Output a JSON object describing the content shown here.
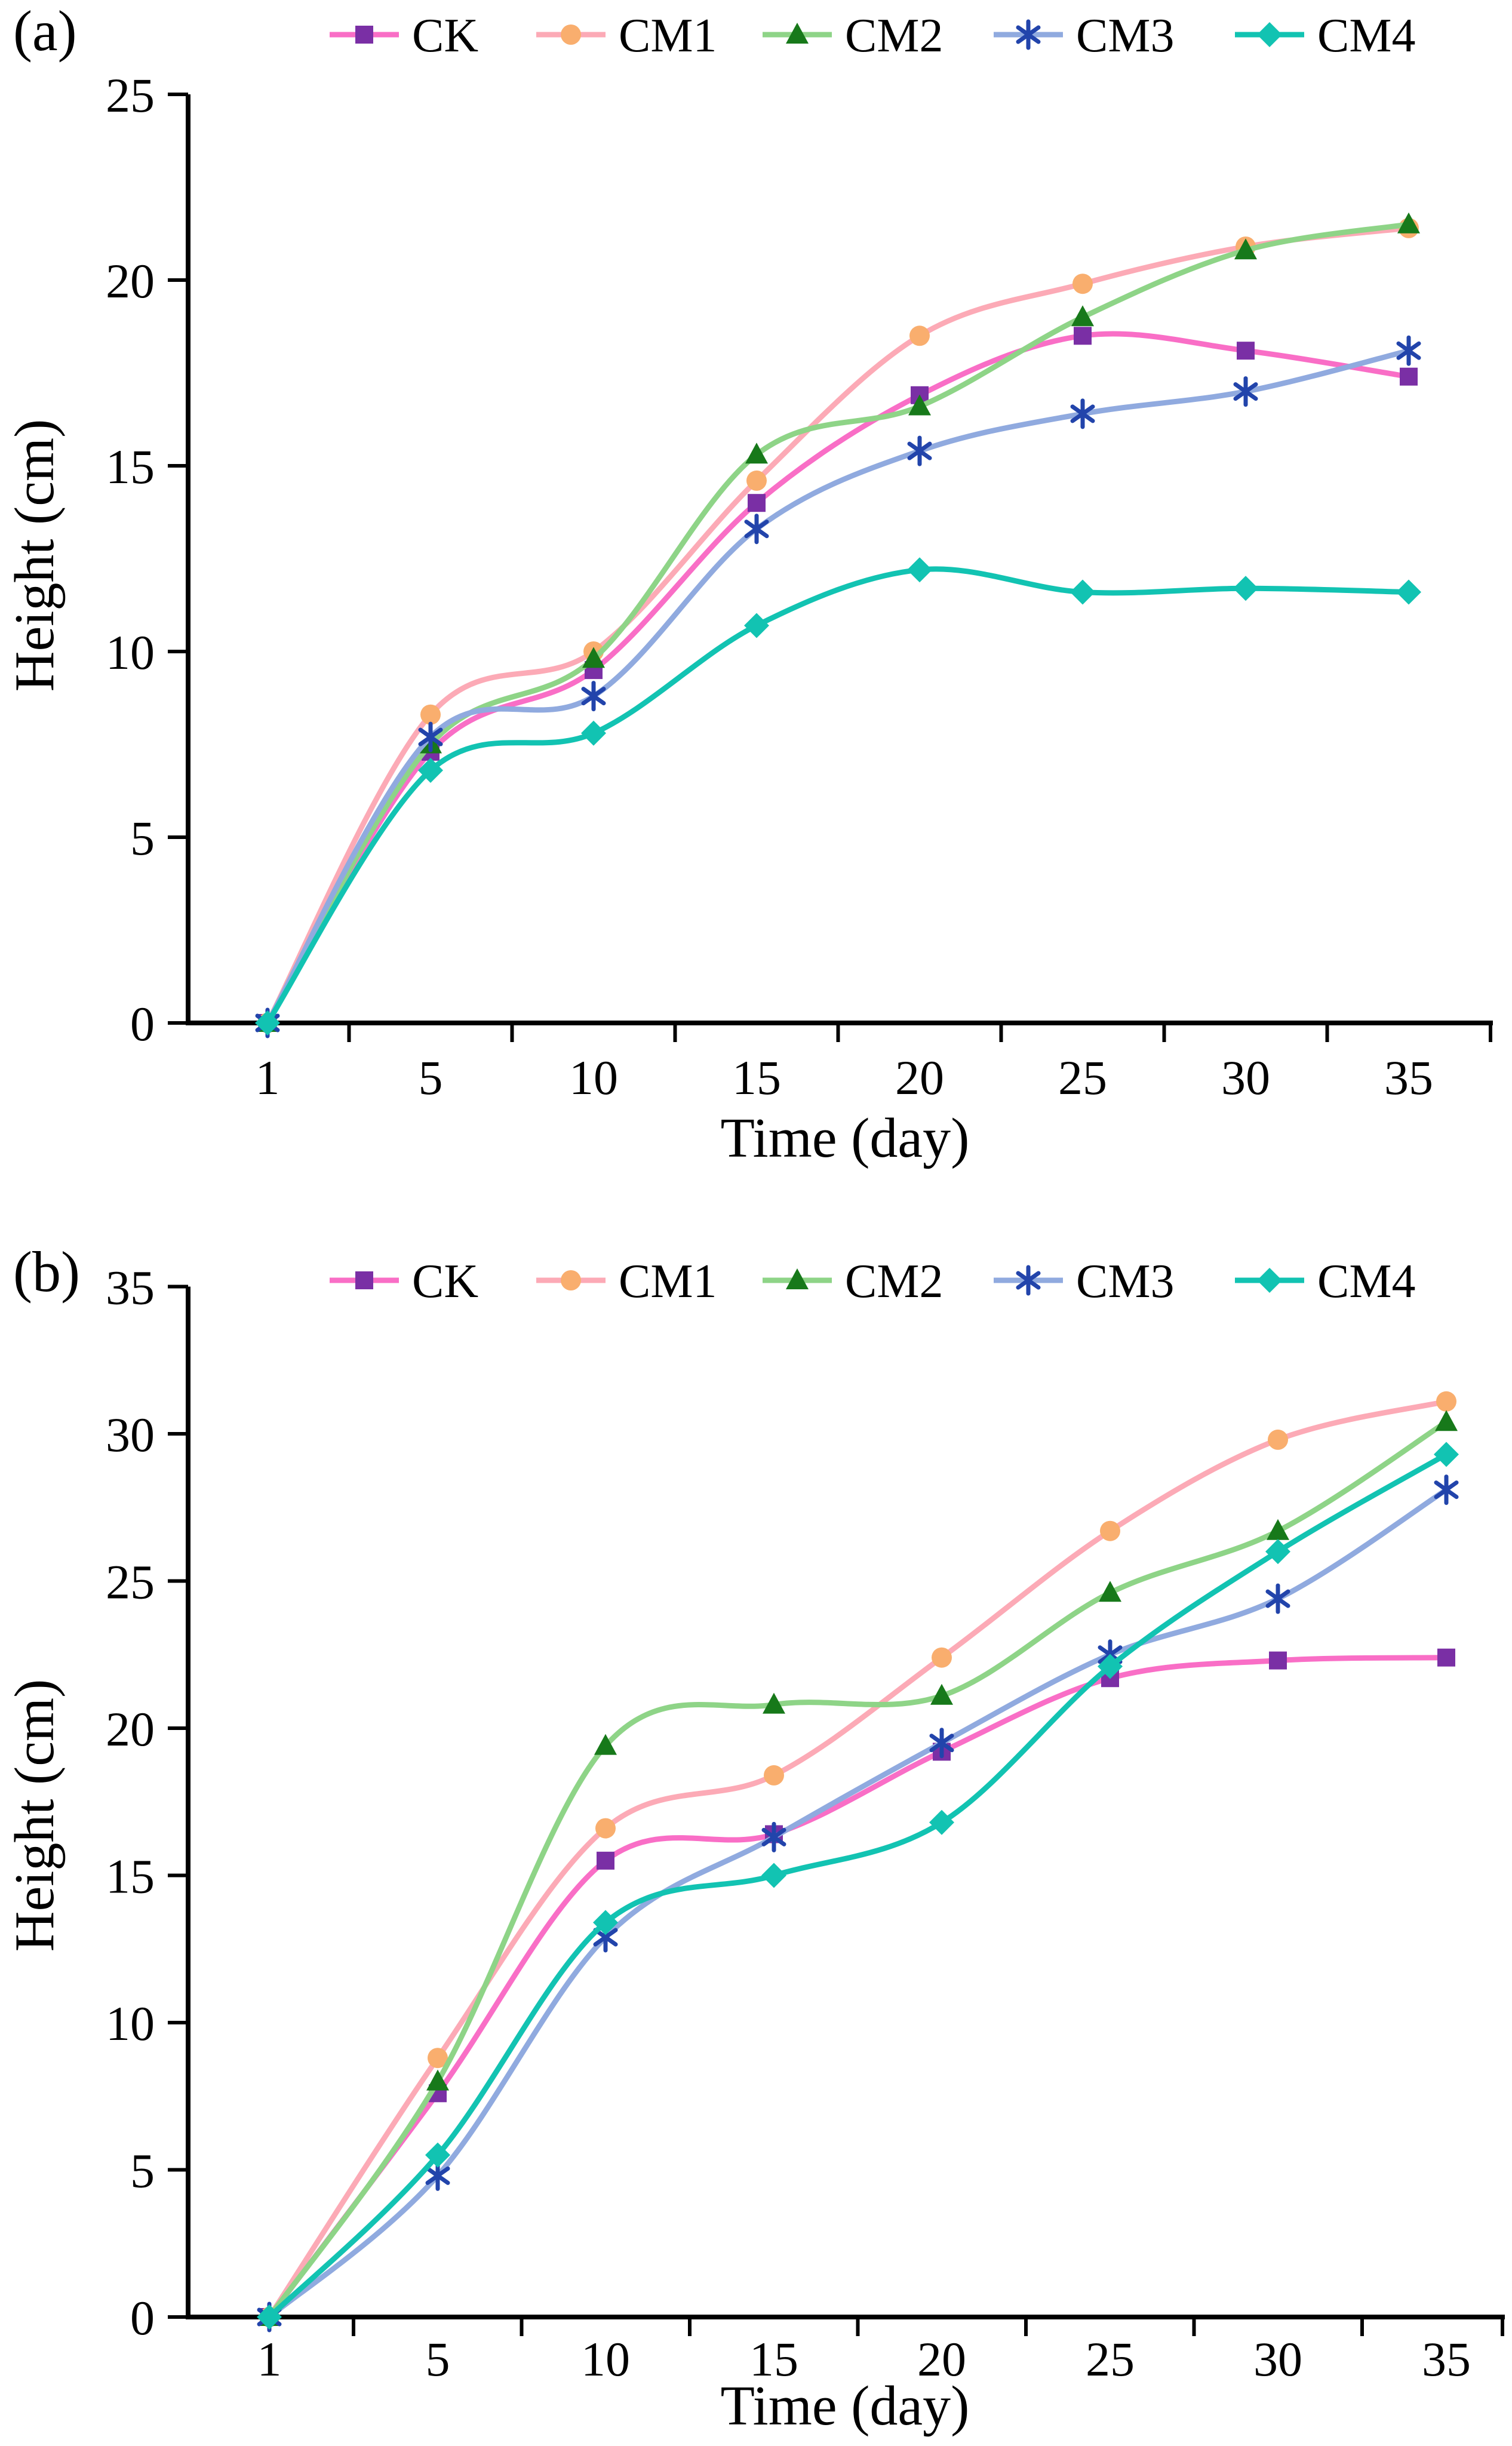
{
  "figure": {
    "background": "#ffffff",
    "axis_color": "#000000",
    "text_color": "#000000"
  },
  "chart_data": [
    {
      "panel_label": "(a)",
      "type": "line",
      "title": "",
      "xlabel": "Time (day)",
      "ylabel": "Height (cm)",
      "x_categories": [
        "1",
        "5",
        "10",
        "15",
        "20",
        "25",
        "30",
        "35"
      ],
      "yticks": [
        0,
        5,
        10,
        15,
        20,
        25
      ],
      "ylim": [
        0,
        25
      ],
      "grid": false,
      "legend_position": "top",
      "series": [
        {
          "name": "CK",
          "line_color": "#f96ec6",
          "marker": "square",
          "marker_color": "#7a2fa5",
          "values": [
            0,
            7.3,
            9.5,
            14.0,
            16.9,
            18.5,
            18.1,
            17.4
          ]
        },
        {
          "name": "CM1",
          "line_color": "#fcaab6",
          "marker": "circle",
          "marker_color": "#f9ae6e",
          "values": [
            0,
            8.3,
            10.0,
            14.6,
            18.5,
            19.9,
            20.9,
            21.4
          ]
        },
        {
          "name": "CM2",
          "line_color": "#8ed487",
          "marker": "triangle",
          "marker_color": "#17791a",
          "values": [
            0,
            7.5,
            9.8,
            15.3,
            16.6,
            19.0,
            20.8,
            21.5
          ]
        },
        {
          "name": "CM3",
          "line_color": "#90aadf",
          "marker": "asterisk",
          "marker_color": "#2244ab",
          "values": [
            0,
            7.7,
            8.8,
            13.3,
            15.4,
            16.4,
            17.0,
            18.1
          ]
        },
        {
          "name": "CM4",
          "line_color": "#12c3b2",
          "marker": "diamond",
          "marker_color": "#12c3b2",
          "values": [
            0,
            6.8,
            7.8,
            10.7,
            12.2,
            11.6,
            11.7,
            11.6
          ]
        }
      ]
    },
    {
      "panel_label": "(b)",
      "type": "line",
      "title": "",
      "xlabel": "Time (day)",
      "ylabel": "Height (cm)",
      "x_categories": [
        "1",
        "5",
        "10",
        "15",
        "20",
        "25",
        "30",
        "35"
      ],
      "yticks": [
        0,
        5,
        10,
        15,
        20,
        25,
        30,
        35
      ],
      "ylim": [
        0,
        35
      ],
      "grid": false,
      "legend_position": "top",
      "series": [
        {
          "name": "CK",
          "line_color": "#f96ec6",
          "marker": "square",
          "marker_color": "#7a2fa5",
          "values": [
            0,
            7.6,
            15.5,
            16.4,
            19.2,
            21.7,
            22.3,
            22.4
          ]
        },
        {
          "name": "CM1",
          "line_color": "#fcaab6",
          "marker": "circle",
          "marker_color": "#f9ae6e",
          "values": [
            0,
            8.8,
            16.6,
            18.4,
            22.4,
            26.7,
            29.8,
            31.1
          ]
        },
        {
          "name": "CM2",
          "line_color": "#8ed487",
          "marker": "triangle",
          "marker_color": "#17791a",
          "values": [
            0,
            8.0,
            19.4,
            20.8,
            21.1,
            24.6,
            26.7,
            30.4
          ]
        },
        {
          "name": "CM3",
          "line_color": "#90aadf",
          "marker": "asterisk",
          "marker_color": "#2244ab",
          "values": [
            0,
            4.8,
            12.9,
            16.3,
            19.5,
            22.5,
            24.4,
            28.1
          ]
        },
        {
          "name": "CM4",
          "line_color": "#12c3b2",
          "marker": "diamond",
          "marker_color": "#12c3b2",
          "values": [
            0,
            5.5,
            13.4,
            15.0,
            16.8,
            22.1,
            26.0,
            29.3
          ]
        }
      ]
    }
  ]
}
